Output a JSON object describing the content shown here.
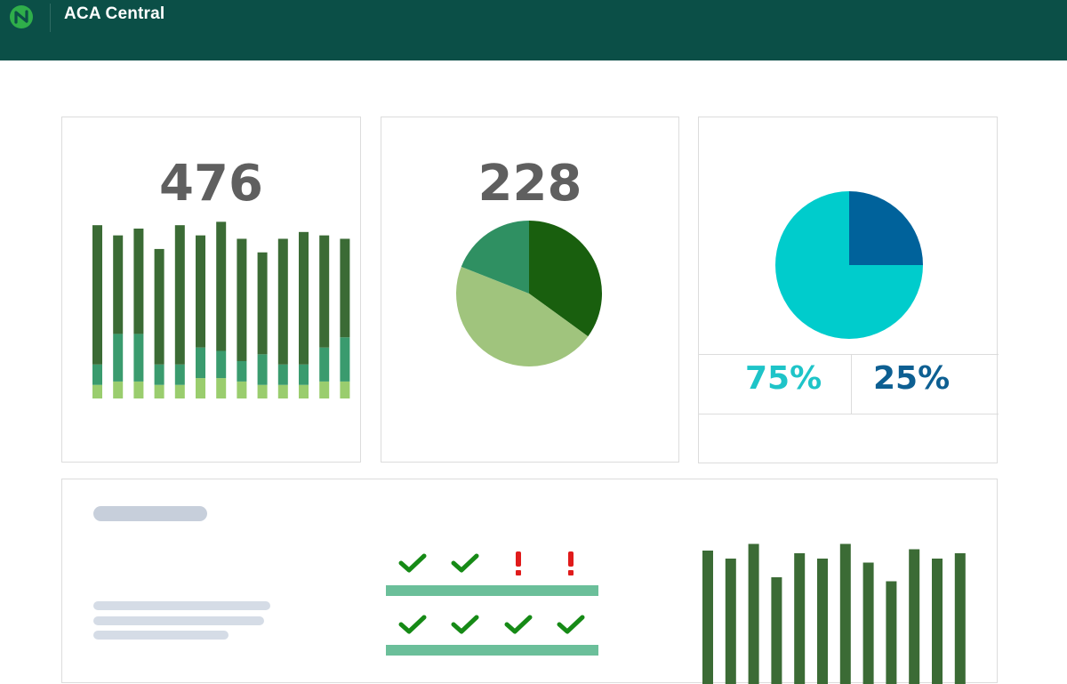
{
  "header": {
    "title": "ACA Central",
    "logo_icon": "aca-logo-icon",
    "background_color": "#0b4f47"
  },
  "cards": {
    "stacked_bars": {
      "value": "476",
      "chart_data": {
        "type": "bar",
        "stacked": true,
        "series": [
          {
            "values": [
              4,
              5,
              5,
              4,
              4,
              6,
              6,
              5,
              4,
              4,
              4,
              5,
              5
            ],
            "color": "#9acd6e"
          },
          {
            "values": [
              6,
              14,
              14,
              6,
              6,
              9,
              8,
              6,
              9,
              6,
              6,
              10,
              13
            ],
            "color": "#3a9b6e"
          },
          {
            "values": [
              41,
              29,
              31,
              34,
              41,
              33,
              38,
              36,
              30,
              37,
              39,
              33,
              29
            ],
            "color": "#3b6b35"
          }
        ],
        "categories": [
          "",
          "",
          "",
          "",
          "",
          "",
          "",
          "",
          "",
          "",
          "",
          "",
          ""
        ]
      }
    },
    "pie_green": {
      "value": "228",
      "chart_data": {
        "type": "pie",
        "slices": [
          {
            "value": 35,
            "color": "#195f0e"
          },
          {
            "value": 46,
            "color": "#a0c47d"
          },
          {
            "value": 19,
            "color": "#2f9062"
          }
        ]
      }
    },
    "pie_blue": {
      "chart_data": {
        "type": "pie",
        "slices": [
          {
            "value": 25,
            "color": "#00629b"
          },
          {
            "value": 75,
            "color": "#00cccc"
          }
        ]
      },
      "pct_left": "75%",
      "pct_right": "25%",
      "pct_left_color": "#1ec4c8",
      "pct_right_color": "#0d5f92"
    }
  },
  "bottom_panel": {
    "checklist": {
      "row1": [
        "check",
        "check",
        "alert",
        "alert"
      ],
      "row2": [
        "check",
        "check",
        "check",
        "check"
      ],
      "check_color": "#168a16",
      "alert_color": "#e01b1b",
      "bar_color": "#6bbf9a"
    },
    "bar_chart": {
      "chart_data": {
        "type": "bar",
        "values": [
          100,
          94,
          105,
          80,
          98,
          94,
          105,
          91,
          77,
          101,
          94,
          98
        ],
        "color": "#3b6b35",
        "categories": [
          "",
          "",
          "",
          "",
          "",
          "",
          "",
          "",
          "",
          "",
          "",
          ""
        ]
      }
    }
  }
}
